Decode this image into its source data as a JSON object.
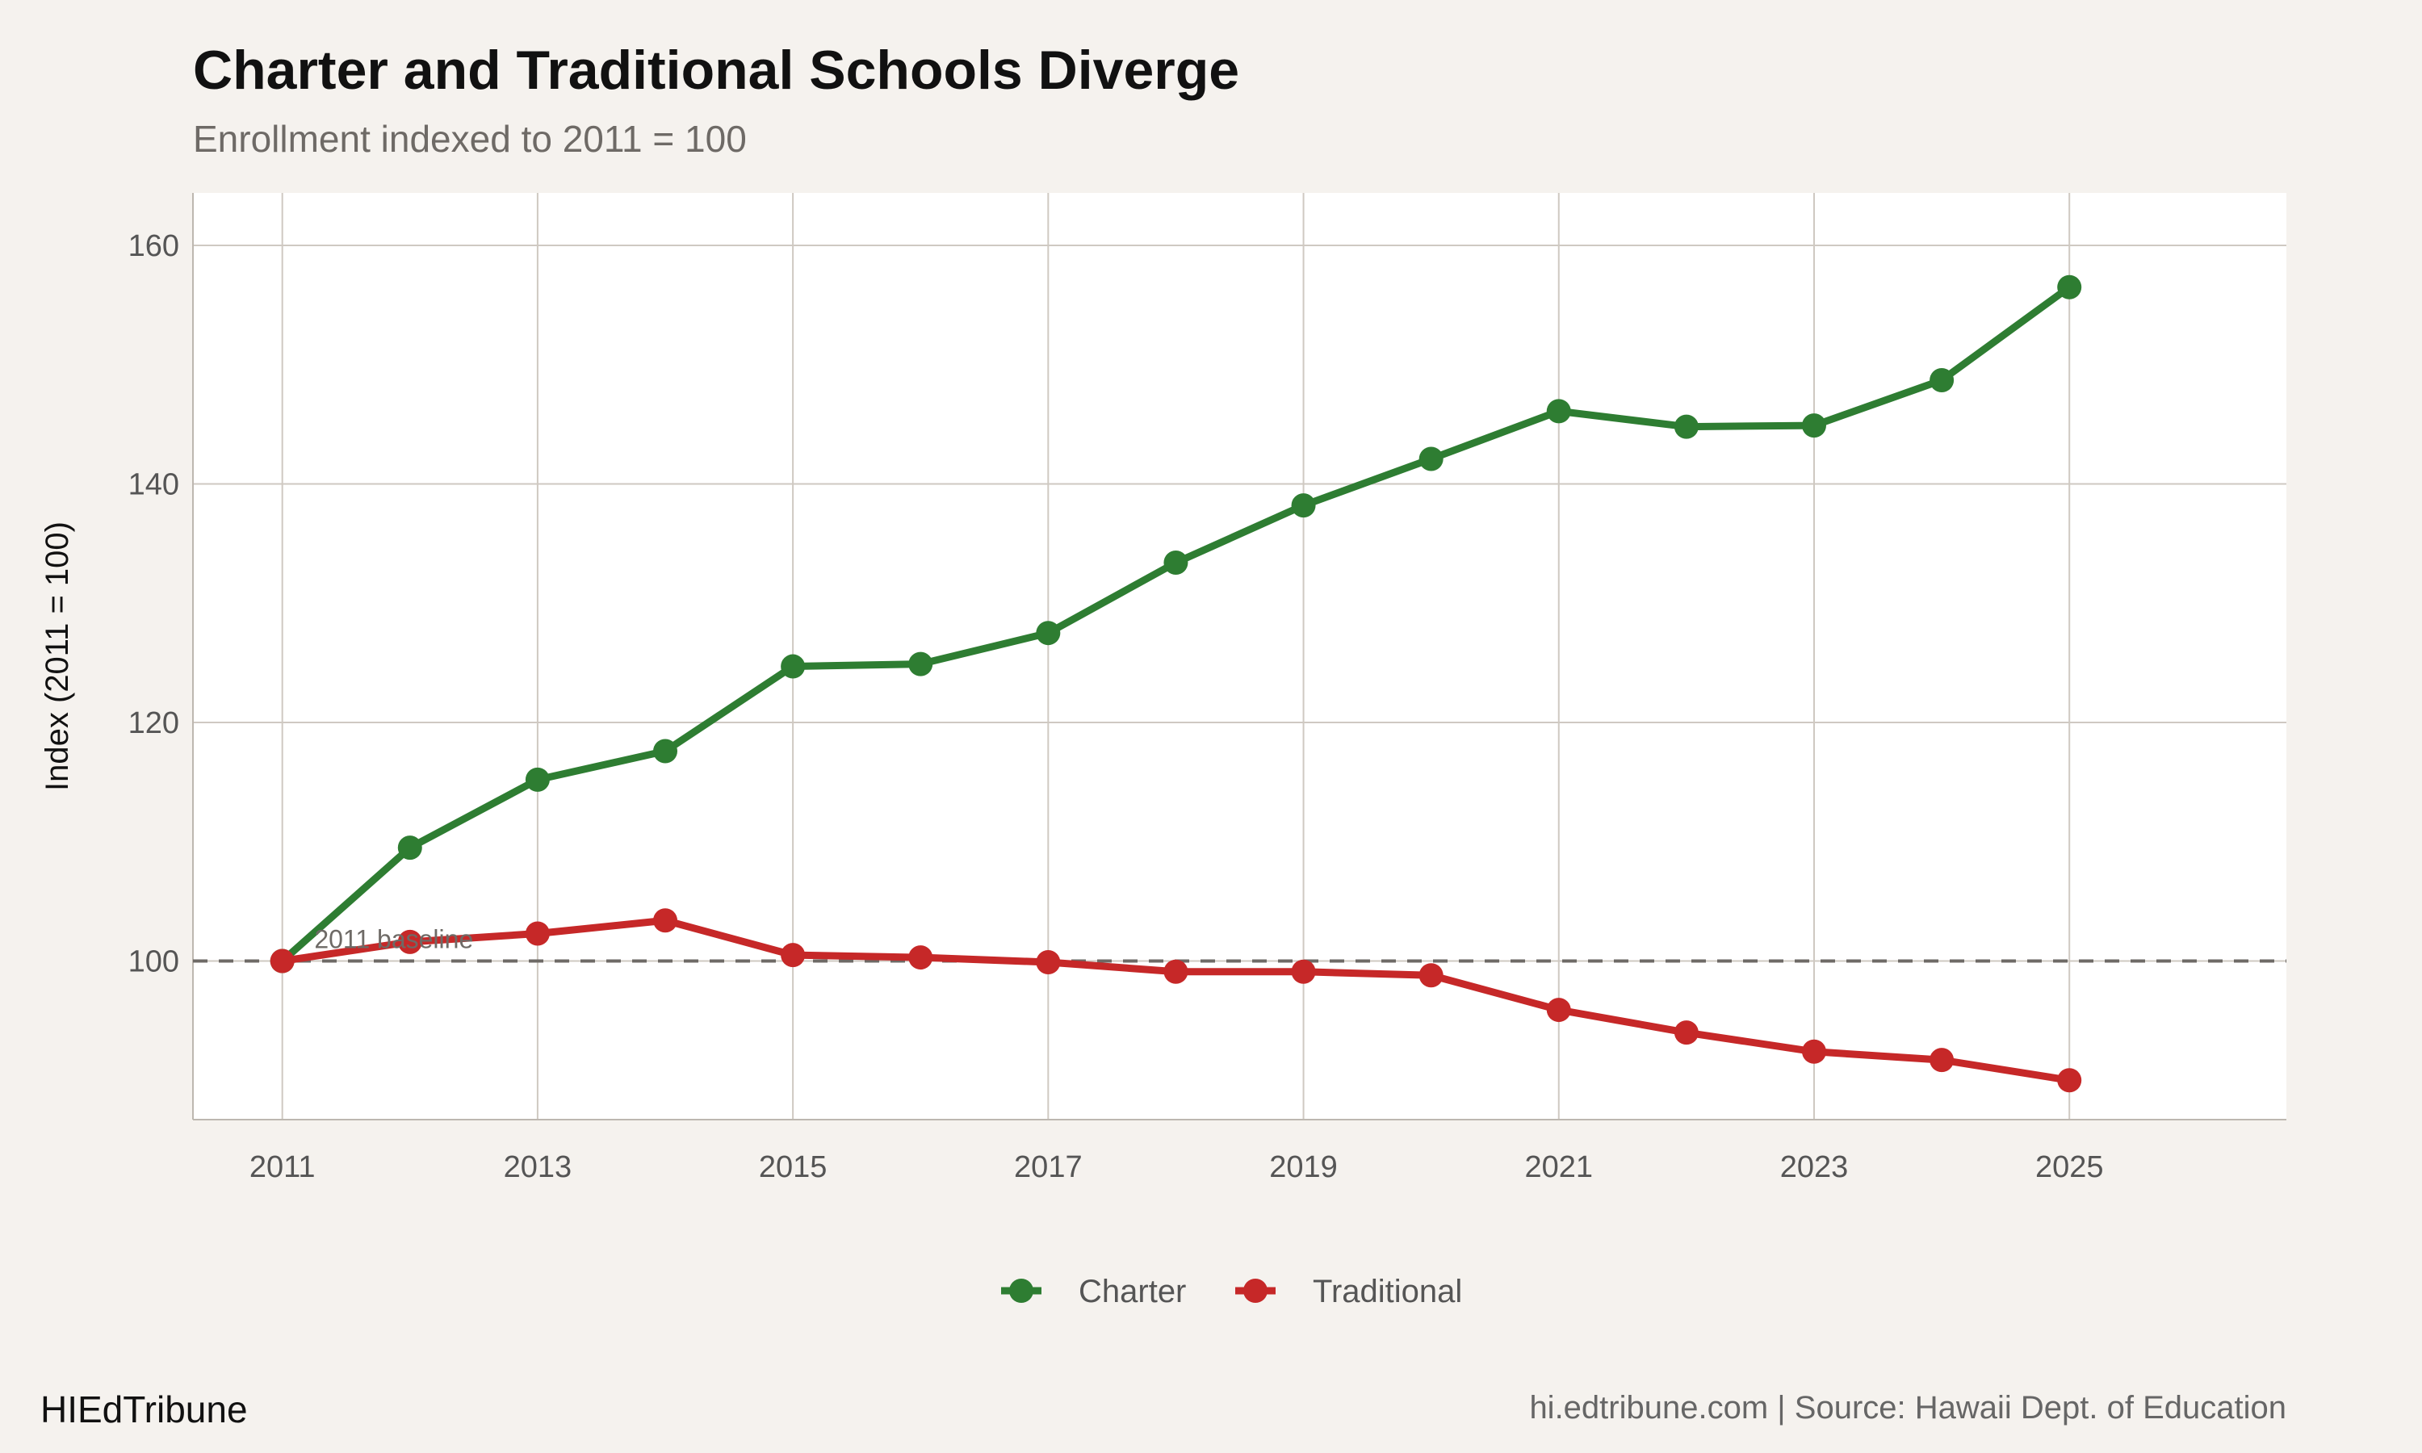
{
  "chart_data": {
    "type": "line",
    "title": "Charter and Traditional Schools Diverge",
    "subtitle": "Enrollment indexed to 2011 = 100",
    "xlabel": "",
    "ylabel": "Index (2011 = 100)",
    "x": [
      2011,
      2012,
      2013,
      2014,
      2015,
      2016,
      2017,
      2018,
      2019,
      2020,
      2021,
      2022,
      2023,
      2024,
      2025
    ],
    "xticks": [
      "2011",
      "2013",
      "2015",
      "2017",
      "2019",
      "2021",
      "2023",
      "2025"
    ],
    "yticks": [
      "100",
      "120",
      "140",
      "160"
    ],
    "xlim": [
      2010.3,
      2026.7
    ],
    "ylim": [
      86.7,
      164.4
    ],
    "grid": true,
    "legend_position": "bottom",
    "series": [
      {
        "name": "Charter",
        "color": "#2e7d32",
        "values": [
          100,
          109.5,
          115.2,
          117.6,
          124.7,
          124.9,
          127.5,
          133.4,
          138.2,
          142.1,
          146.1,
          144.8,
          144.9,
          148.7,
          156.5
        ]
      },
      {
        "name": "Traditional",
        "color": "#c62828",
        "values": [
          100,
          101.6,
          102.3,
          103.4,
          100.5,
          100.3,
          99.9,
          99.1,
          99.1,
          98.8,
          95.9,
          94.0,
          92.4,
          91.7,
          90.0
        ]
      }
    ],
    "reference_line": {
      "y": 100,
      "style": "dashed",
      "label": "2011 baseline"
    }
  },
  "footer": {
    "brand": "HIEdTribune",
    "source": "hi.edtribune.com | Source: Hawaii Dept. of Education"
  }
}
